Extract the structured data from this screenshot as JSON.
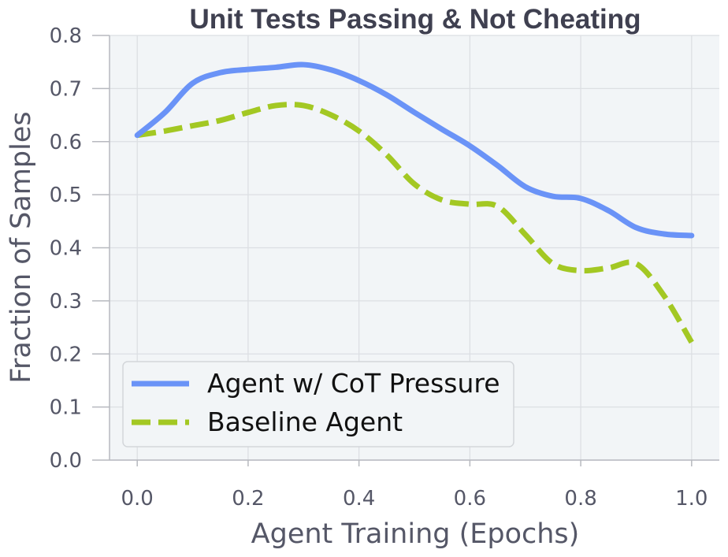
{
  "chart_data": {
    "type": "line",
    "title": "Unit Tests Passing & Not Cheating",
    "xlabel": "Agent Training (Epochs)",
    "ylabel": "Fraction of Samples",
    "xlim": [
      -0.05,
      1.05
    ],
    "ylim": [
      0.0,
      0.8
    ],
    "x_ticks": [
      "0.0",
      "0.2",
      "0.4",
      "0.6",
      "0.8",
      "1.0"
    ],
    "y_ticks": [
      "0.0",
      "0.1",
      "0.2",
      "0.3",
      "0.4",
      "0.5",
      "0.6",
      "0.7",
      "0.8"
    ],
    "grid": true,
    "legend_position": "bottom-left",
    "series": [
      {
        "name": "Agent w/ CoT Pressure",
        "style": "solid",
        "color": "#6a93f7",
        "x": [
          0.0,
          0.05,
          0.1,
          0.15,
          0.2,
          0.25,
          0.3,
          0.35,
          0.4,
          0.45,
          0.5,
          0.55,
          0.6,
          0.65,
          0.7,
          0.75,
          0.8,
          0.85,
          0.9,
          0.95,
          1.0
        ],
        "y": [
          0.612,
          0.655,
          0.71,
          0.73,
          0.736,
          0.74,
          0.745,
          0.735,
          0.715,
          0.688,
          0.655,
          0.623,
          0.592,
          0.555,
          0.515,
          0.497,
          0.493,
          0.47,
          0.438,
          0.426,
          0.423
        ]
      },
      {
        "name": "Baseline Agent",
        "style": "dashed",
        "color": "#a3c823",
        "x": [
          0.0,
          0.05,
          0.1,
          0.15,
          0.2,
          0.25,
          0.3,
          0.35,
          0.4,
          0.45,
          0.5,
          0.55,
          0.6,
          0.65,
          0.7,
          0.75,
          0.8,
          0.85,
          0.9,
          0.95,
          1.0
        ],
        "y": [
          0.612,
          0.62,
          0.63,
          0.64,
          0.655,
          0.668,
          0.668,
          0.65,
          0.62,
          0.575,
          0.52,
          0.49,
          0.482,
          0.478,
          0.425,
          0.37,
          0.357,
          0.362,
          0.37,
          0.31,
          0.222
        ]
      }
    ]
  }
}
